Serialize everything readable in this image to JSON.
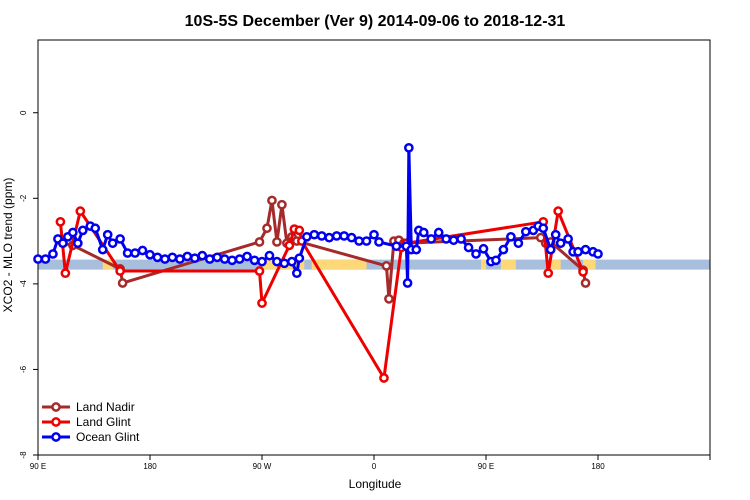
{
  "chart_data": {
    "type": "line",
    "title": "10S-5S December (Ver 9)   2014-09-06 to 2018-12-31",
    "xlabel": "Longitude",
    "ylabel": "XCO2 - MLO trend (ppm)",
    "xlim": [
      -90,
      180
    ],
    "ylim": [
      -8,
      1.7
    ],
    "x_ticks": [
      {
        "value": -90,
        "label": "90 E"
      },
      {
        "value": -45,
        "label": "180"
      },
      {
        "value": 0,
        "label": "90 W"
      },
      {
        "value": 45,
        "label": "0"
      },
      {
        "value": 90,
        "label": "90 E"
      },
      {
        "value": 135,
        "label": "180"
      },
      {
        "value": 180,
        "label": ""
      }
    ],
    "y_ticks": [
      0,
      -2,
      -4,
      -6,
      -8
    ],
    "grid": false,
    "legend_position": "bottom-left",
    "land_ocean_band": {
      "y": -3.55,
      "ocean_color": "#a7bfdc",
      "land_color": "#fcd878",
      "land_segments": [
        [
          -64,
          -60
        ],
        [
          0,
          17
        ],
        [
          20,
          42
        ],
        [
          88,
          90
        ],
        [
          96,
          102
        ],
        [
          116,
          120
        ],
        [
          129,
          134
        ]
      ]
    },
    "series": [
      {
        "name": "Land Nadir",
        "color": "#a52a2a",
        "points": [
          [
            -80,
            -3.05
          ],
          [
            -76,
            -3.1
          ],
          [
            -57,
            -3.65
          ],
          [
            -56,
            -3.98
          ],
          [
            -1,
            -3.02
          ],
          [
            2,
            -2.7
          ],
          [
            4,
            -2.05
          ],
          [
            6,
            -3.02
          ],
          [
            8,
            -2.15
          ],
          [
            10,
            -3.05
          ],
          [
            12,
            -2.9
          ],
          [
            14,
            -3.0
          ],
          [
            50,
            -3.58
          ],
          [
            51,
            -4.35
          ],
          [
            53,
            -3.0
          ],
          [
            55,
            -2.98
          ],
          [
            57,
            -3.05
          ],
          [
            112,
            -2.92
          ],
          [
            114,
            -3.05
          ],
          [
            116,
            -3.02
          ],
          [
            129,
            -3.68
          ],
          [
            130,
            -3.98
          ]
        ]
      },
      {
        "name": "Land Glint",
        "color": "#ee0000",
        "points": [
          [
            -81,
            -2.55
          ],
          [
            -79,
            -3.75
          ],
          [
            -73,
            -2.3
          ],
          [
            -57,
            -3.7
          ],
          [
            -1,
            -3.7
          ],
          [
            0,
            -4.45
          ],
          [
            11,
            -3.1
          ],
          [
            13,
            -2.72
          ],
          [
            15,
            -2.75
          ],
          [
            16,
            -3.0
          ],
          [
            49,
            -6.2
          ],
          [
            56,
            -3.15
          ],
          [
            58,
            -3.05
          ],
          [
            113,
            -2.55
          ],
          [
            115,
            -3.75
          ],
          [
            119,
            -2.3
          ],
          [
            129,
            -3.72
          ]
        ]
      },
      {
        "name": "Ocean Glint",
        "color": "#0000ee",
        "points": [
          [
            -90,
            -3.42
          ],
          [
            -87,
            -3.42
          ],
          [
            -84,
            -3.3
          ],
          [
            -82,
            -2.95
          ],
          [
            -80,
            -3.05
          ],
          [
            -78,
            -2.9
          ],
          [
            -76,
            -2.8
          ],
          [
            -74,
            -3.05
          ],
          [
            -72,
            -2.75
          ],
          [
            -69,
            -2.65
          ],
          [
            -67,
            -2.7
          ],
          [
            -64,
            -3.2
          ],
          [
            -62,
            -2.85
          ],
          [
            -60,
            -3.05
          ],
          [
            -57,
            -2.95
          ],
          [
            -54,
            -3.28
          ],
          [
            -51,
            -3.28
          ],
          [
            -48,
            -3.22
          ],
          [
            -45,
            -3.32
          ],
          [
            -42,
            -3.38
          ],
          [
            -39,
            -3.42
          ],
          [
            -36,
            -3.38
          ],
          [
            -33,
            -3.42
          ],
          [
            -30,
            -3.36
          ],
          [
            -27,
            -3.4
          ],
          [
            -24,
            -3.34
          ],
          [
            -21,
            -3.42
          ],
          [
            -18,
            -3.38
          ],
          [
            -15,
            -3.42
          ],
          [
            -12,
            -3.45
          ],
          [
            -9,
            -3.42
          ],
          [
            -6,
            -3.36
          ],
          [
            -3,
            -3.45
          ],
          [
            0,
            -3.48
          ],
          [
            3,
            -3.34
          ],
          [
            6,
            -3.48
          ],
          [
            9,
            -3.52
          ],
          [
            12,
            -3.48
          ],
          [
            14,
            -3.75
          ],
          [
            15,
            -3.4
          ],
          [
            18,
            -2.9
          ],
          [
            21,
            -2.85
          ],
          [
            24,
            -2.88
          ],
          [
            27,
            -2.92
          ],
          [
            30,
            -2.88
          ],
          [
            33,
            -2.88
          ],
          [
            36,
            -2.92
          ],
          [
            39,
            -3.0
          ],
          [
            42,
            -3.0
          ],
          [
            45,
            -2.85
          ],
          [
            47,
            -3.02
          ],
          [
            54,
            -3.12
          ],
          [
            58,
            -3.12
          ],
          [
            58.5,
            -3.98
          ],
          [
            59,
            -0.82
          ],
          [
            60,
            -3.2
          ],
          [
            62,
            -3.2
          ],
          [
            63,
            -2.75
          ],
          [
            65,
            -2.8
          ],
          [
            68,
            -2.95
          ],
          [
            71,
            -2.8
          ],
          [
            74,
            -2.95
          ],
          [
            77,
            -2.98
          ],
          [
            80,
            -2.95
          ],
          [
            83,
            -3.15
          ],
          [
            86,
            -3.3
          ],
          [
            89,
            -3.18
          ],
          [
            92,
            -3.48
          ],
          [
            94,
            -3.45
          ],
          [
            97,
            -3.2
          ],
          [
            100,
            -2.9
          ],
          [
            103,
            -3.05
          ],
          [
            106,
            -2.78
          ],
          [
            109,
            -2.75
          ],
          [
            111,
            -2.65
          ],
          [
            113,
            -2.7
          ],
          [
            116,
            -3.2
          ],
          [
            118,
            -2.85
          ],
          [
            120,
            -3.05
          ],
          [
            123,
            -2.95
          ],
          [
            125,
            -3.25
          ],
          [
            127,
            -3.25
          ],
          [
            130,
            -3.2
          ],
          [
            133,
            -3.25
          ],
          [
            135,
            -3.3
          ]
        ]
      }
    ]
  }
}
